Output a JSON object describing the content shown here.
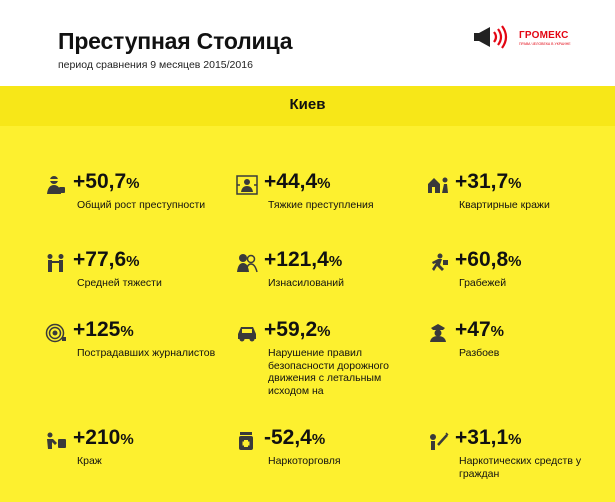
{
  "header": {
    "title": "Преступная Столица",
    "subtitle": "период сравнения 9 месяцев 2015/2016",
    "logo": {
      "name": "ГРОМЕКС",
      "tagline": "ПРАВА ЧЕЛОВЕКА В УКРАИНЕ"
    }
  },
  "city": "Киев",
  "stats": [
    {
      "value": "+50,7",
      "unit": "%",
      "label": "Общий рост преступности",
      "icon": "thief-icon"
    },
    {
      "value": "+44,4",
      "unit": "%",
      "label": "Тяжкие преступления",
      "icon": "target-person-icon"
    },
    {
      "value": "+31,7",
      "unit": "%",
      "label": "Квартирные кражи",
      "icon": "burglar-house-icon"
    },
    {
      "value": "+77,6",
      "unit": "%",
      "label": "Средней тяжести",
      "icon": "fight-icon"
    },
    {
      "value": "+121,4",
      "unit": "%",
      "label": "Изнасилований",
      "icon": "couple-icon"
    },
    {
      "value": "+60,8",
      "unit": "%",
      "label": "Грабежей",
      "icon": "running-man-icon"
    },
    {
      "value": "+125",
      "unit": "%",
      "label": "Пострадавших журналистов",
      "icon": "camera-lens-icon"
    },
    {
      "value": "+59,2",
      "unit": "%",
      "label": "Нарушение правил безопасности дорожного движения с летальным исходом на",
      "icon": "car-icon"
    },
    {
      "value": "+47",
      "unit": "%",
      "label": "Разбоев",
      "icon": "police-icon"
    },
    {
      "value": "+210",
      "unit": "%",
      "label": "Краж",
      "icon": "bag-thief-icon"
    },
    {
      "value": "-52,4",
      "unit": "%",
      "label": "Наркоторговля",
      "icon": "pill-jar-icon"
    },
    {
      "value": "+31,1",
      "unit": "%",
      "label": "Наркотических средств у граждан",
      "icon": "syringe-person-icon"
    }
  ]
}
